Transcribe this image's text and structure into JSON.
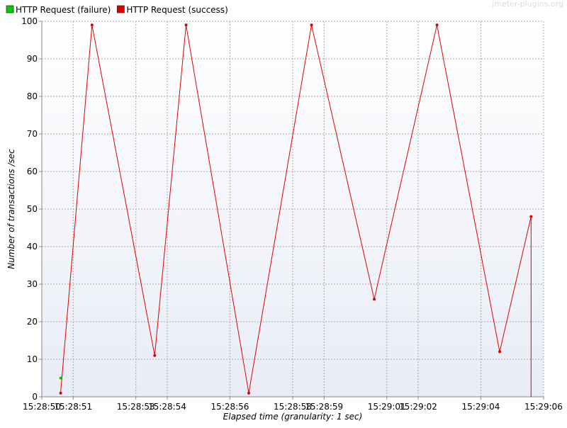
{
  "chart_data": {
    "type": "line",
    "watermark": "jmeter-plugins.org",
    "xlabel": "Elapsed time (granularity: 1 sec)",
    "ylabel": "Number of transactions /sec",
    "ylim": [
      0,
      100
    ],
    "yticks": [
      0,
      10,
      20,
      30,
      40,
      50,
      60,
      70,
      80,
      90,
      100
    ],
    "xlim": [
      "15:28:50",
      "15:29:06"
    ],
    "xticks": [
      "15:28:50",
      "15:28:51",
      "15:28:53",
      "15:28:54",
      "15:28:56",
      "15:28:58",
      "15:28:59",
      "15:29:01",
      "15:29:02",
      "15:29:04",
      "15:29:06"
    ],
    "grid": true,
    "legend_position": "top-left",
    "series": [
      {
        "name": "HTTP Request (failure)",
        "color": "#00cc00",
        "points": [
          {
            "x": "15:28:50.6",
            "y": 5
          }
        ]
      },
      {
        "name": "HTTP Request (success)",
        "color": "#dd0000",
        "points": [
          {
            "x": "15:28:50.6",
            "y": 1
          },
          {
            "x": "15:28:51.6",
            "y": 99
          },
          {
            "x": "15:28:53.6",
            "y": 11
          },
          {
            "x": "15:28:54.6",
            "y": 99
          },
          {
            "x": "15:28:56.6",
            "y": 1
          },
          {
            "x": "15:28:58.6",
            "y": 99
          },
          {
            "x": "15:29:00.6",
            "y": 26
          },
          {
            "x": "15:29:02.6",
            "y": 99
          },
          {
            "x": "15:29:04.6",
            "y": 12
          },
          {
            "x": "15:29:05.6",
            "y": 48
          },
          {
            "x": "15:29:05.6",
            "y": 0
          }
        ]
      }
    ]
  }
}
